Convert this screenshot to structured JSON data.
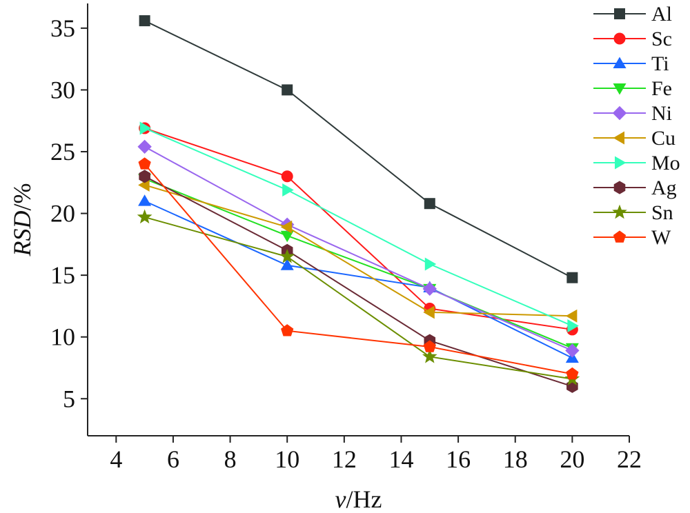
{
  "chart_data": {
    "type": "line",
    "xlabel": {
      "italic": "v",
      "rest": "/Hz"
    },
    "ylabel": {
      "italic": "RSD",
      "rest": "/%"
    },
    "xlim": [
      3,
      22
    ],
    "ylim": [
      2,
      37
    ],
    "xticks": [
      4,
      6,
      8,
      10,
      12,
      14,
      16,
      18,
      20,
      22
    ],
    "yticks": [
      5,
      10,
      15,
      20,
      25,
      30,
      35
    ],
    "grid": false,
    "legend_position": "top-right",
    "x": [
      5,
      10,
      15,
      20
    ],
    "series": [
      {
        "name": "Al",
        "color": "#2f3a3a",
        "marker": "square",
        "values": [
          35.6,
          30.0,
          20.8,
          14.8
        ]
      },
      {
        "name": "Sc",
        "color": "#ff1a1a",
        "marker": "circle",
        "values": [
          26.9,
          23.0,
          12.3,
          10.6
        ]
      },
      {
        "name": "Ti",
        "color": "#1a66ff",
        "marker": "triangle-up",
        "values": [
          21.0,
          15.8,
          14.0,
          8.3
        ]
      },
      {
        "name": "Fe",
        "color": "#22e022",
        "marker": "triangle-down",
        "values": [
          22.8,
          18.2,
          13.9,
          9.1
        ]
      },
      {
        "name": "Ni",
        "color": "#9966ee",
        "marker": "diamond",
        "values": [
          25.4,
          19.1,
          13.9,
          8.9
        ]
      },
      {
        "name": "Cu",
        "color": "#cc9900",
        "marker": "triangle-left",
        "values": [
          22.3,
          18.9,
          12.0,
          11.7
        ]
      },
      {
        "name": "Mo",
        "color": "#33ffbb",
        "marker": "triangle-right",
        "values": [
          26.9,
          21.9,
          15.9,
          10.9
        ]
      },
      {
        "name": "Ag",
        "color": "#6a2a35",
        "marker": "hexagon",
        "values": [
          23.0,
          17.0,
          9.7,
          6.0
        ]
      },
      {
        "name": "Sn",
        "color": "#6b8e00",
        "marker": "star",
        "values": [
          19.7,
          16.5,
          8.4,
          6.6
        ]
      },
      {
        "name": "W",
        "color": "#ff3300",
        "marker": "pentagon",
        "values": [
          24.0,
          10.5,
          9.2,
          7.0
        ]
      }
    ]
  }
}
